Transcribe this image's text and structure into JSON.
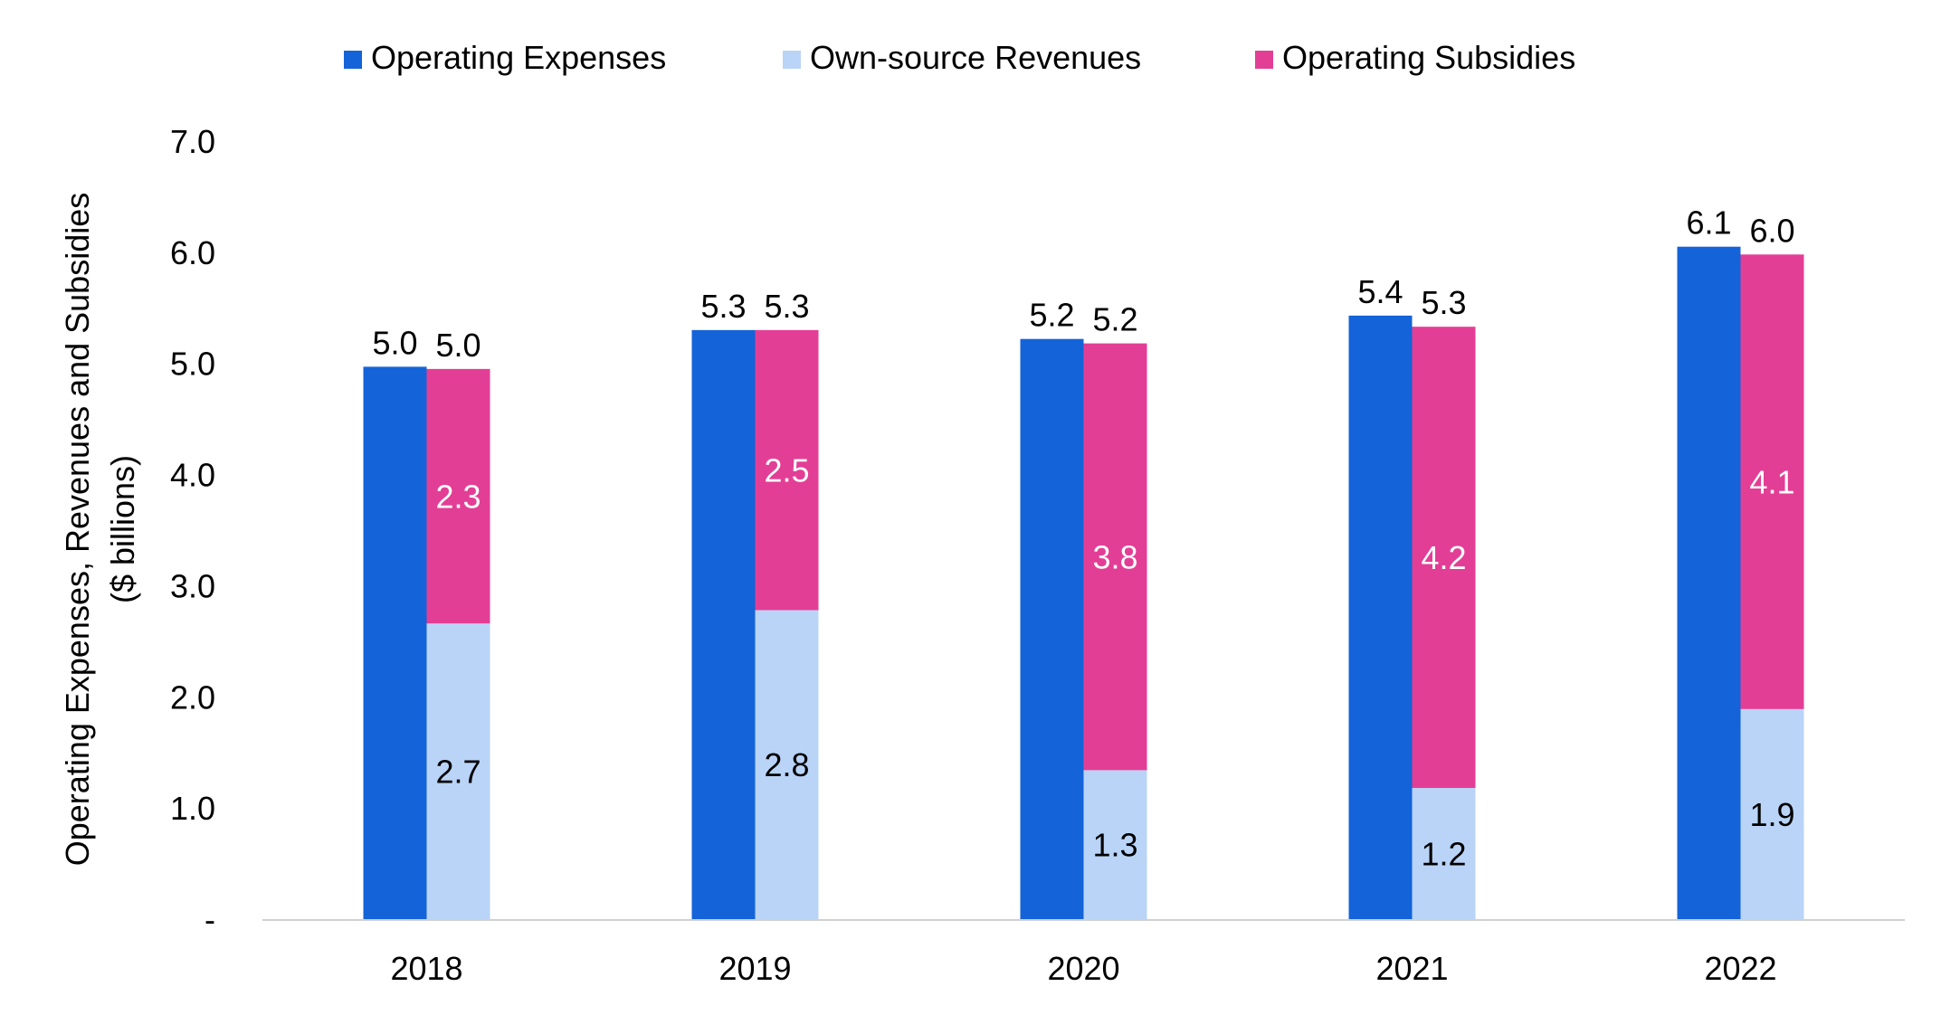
{
  "chart_data": {
    "type": "bar",
    "title": "",
    "xlabel": "",
    "ylabel": "Operating Expenses, Revenues and Subsidies",
    "ylabel_units": "($ billions)",
    "categories": [
      "2018",
      "2019",
      "2020",
      "2021",
      "2022"
    ],
    "ylim": [
      0,
      7
    ],
    "yticks": [
      "-",
      "1.0",
      "2.0",
      "3.0",
      "4.0",
      "5.0",
      "6.0",
      "7.0"
    ],
    "grid": false,
    "legend_position": "top-center",
    "colors": {
      "operating_expenses": "#1463d8",
      "own_source_revenues": "#b9d4f7",
      "operating_subsidies": "#e33e95"
    },
    "series": [
      {
        "name": "Operating Expenses",
        "key": "operating_expenses",
        "stack": "expenses",
        "values": [
          4.97,
          5.3,
          5.22,
          5.43,
          6.05
        ]
      },
      {
        "name": "Own-source Revenues",
        "key": "own_source_revenues",
        "stack": "revenues",
        "values": [
          2.66,
          2.78,
          1.34,
          1.18,
          1.89
        ]
      },
      {
        "name": "Operating Subsidies",
        "key": "operating_subsidies",
        "stack": "revenues",
        "values": [
          2.29,
          2.52,
          3.84,
          4.15,
          4.09
        ]
      }
    ],
    "labels": {
      "operating_expenses": [
        "5.0",
        "5.3",
        "5.2",
        "5.4",
        "6.1"
      ],
      "own_source_revenues": [
        "2.7",
        "2.8",
        "1.3",
        "1.2",
        "1.9"
      ],
      "operating_subsidies": [
        "2.3",
        "2.5",
        "3.8",
        "4.2",
        "4.1"
      ],
      "revenue_totals": [
        "5.0",
        "5.3",
        "5.2",
        "5.3",
        "6.0"
      ]
    }
  }
}
